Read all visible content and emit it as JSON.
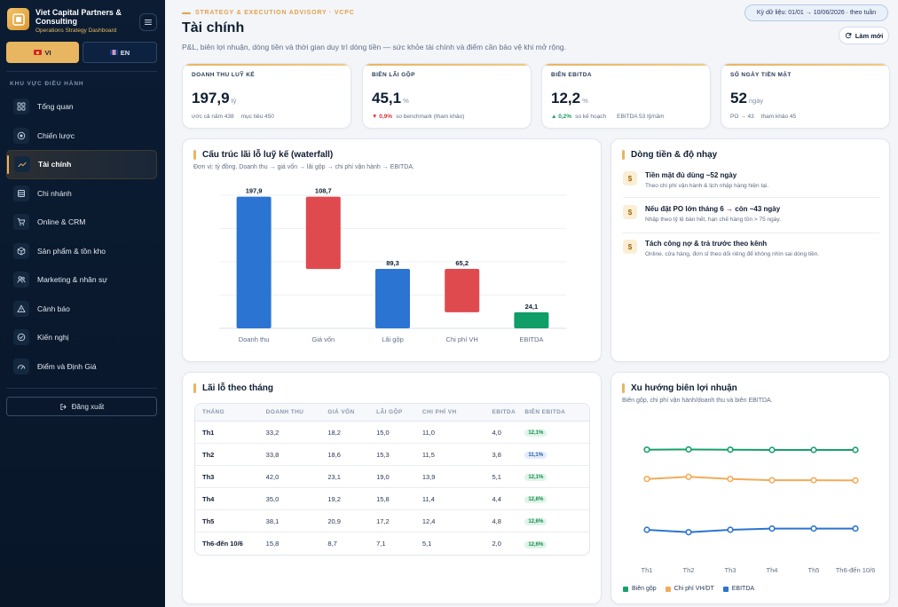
{
  "brand": {
    "name": "Viet Capital Partners & Consulting",
    "subtitle": "Operations Strategy Dashboard"
  },
  "languages": [
    {
      "code": "VI",
      "active": true
    },
    {
      "code": "EN",
      "active": false
    }
  ],
  "sidebar": {
    "section_label": "KHU VỰC ĐIỀU HÀNH",
    "items": [
      {
        "label": "Tổng quan",
        "icon": "grid-icon"
      },
      {
        "label": "Chiến lược",
        "icon": "target-icon"
      },
      {
        "label": "Tài chính",
        "icon": "trend-up-icon",
        "active": true
      },
      {
        "label": "Chi nhánh",
        "icon": "store-icon"
      },
      {
        "label": "Online & CRM",
        "icon": "cart-icon"
      },
      {
        "label": "Sản phẩm & tồn kho",
        "icon": "box-icon"
      },
      {
        "label": "Marketing & nhân sự",
        "icon": "users-icon"
      },
      {
        "label": "Cảnh báo",
        "icon": "warning-icon"
      },
      {
        "label": "Kiến nghị",
        "icon": "check-circle-icon"
      },
      {
        "label": "Điểm và Định Giá",
        "icon": "gauge-icon"
      }
    ],
    "logout_label": "Đăng xuất"
  },
  "header": {
    "eyebrow": "STRATEGY & EXECUTION ADVISORY · VCPC",
    "title": "Tài chính",
    "subtitle": "P&L, biên lợi nhuận, dòng tiền và thời gian duy trì dòng tiền — sức khỏe tài chính và điểm cần bảo vệ khi mở rộng.",
    "period": "Kỳ dữ liệu: 01/01 → 10/06/2026 · theo tuần",
    "refresh_label": "Làm mới"
  },
  "kpis": [
    {
      "label": "DOANH THU LUỸ KẾ",
      "value": "197,9",
      "unit": "tỷ",
      "delta": "",
      "foot1": "ước cả năm 438",
      "foot2": "mục tiêu 450"
    },
    {
      "label": "BIÊN LÃI GỘP",
      "value": "45,1",
      "unit": "%",
      "delta": "▼ 0,9%",
      "foot1": "so benchmark (tham khảo)",
      "foot2": ""
    },
    {
      "label": "BIÊN EBITDA",
      "value": "12,2",
      "unit": "%",
      "delta": "▲ 0,2%",
      "foot1": "so kế hoạch",
      "foot2": "EBITDA 53 tỷ/năm"
    },
    {
      "label": "SỐ NGÀY TIỀN MẶT",
      "value": "52",
      "unit": "ngày",
      "delta": "",
      "foot1": "PO → 43",
      "foot2": "tham khảo 45"
    }
  ],
  "waterfall": {
    "title": "Cấu trúc lãi lỗ luỹ kế (waterfall)",
    "subtitle": "Đơn vị: tỷ đồng. Doanh thu → giá vốn → lãi gộp → chi phí vận hành → EBITDA."
  },
  "cashflow": {
    "title": "Dòng tiền & độ nhạy",
    "items": [
      {
        "icon": "$",
        "title": "Tiền mặt đủ dùng ~52 ngày",
        "desc": "Theo chi phí vận hành & lịch nhập hàng hiện tại."
      },
      {
        "icon": "$",
        "title": "Nếu đặt PO lớn tháng 6 → còn ~43 ngày",
        "desc": "Nhập theo tỷ lệ bán hết, hạn chế hàng tồn > 75 ngày."
      },
      {
        "icon": "$",
        "title": "Tách công nợ & trả trước theo kênh",
        "desc": "Online, cửa hàng, đơn sỉ theo dõi riêng để không nhìn sai dòng tiền."
      }
    ]
  },
  "pl_table": {
    "title": "Lãi lỗ theo tháng",
    "columns": [
      "THÁNG",
      "DOANH THU",
      "GIÁ VỐN",
      "LÃI GỘP",
      "CHI PHÍ VH",
      "EBITDA",
      "BIÊN EBITDA"
    ],
    "rows": [
      [
        "Th1",
        "33,2",
        "18,2",
        "15,0",
        "11,0",
        "4,0",
        "12,1%"
      ],
      [
        "Th2",
        "33,8",
        "18,6",
        "15,3",
        "11,5",
        "3,8",
        "11,1%"
      ],
      [
        "Th3",
        "42,0",
        "23,1",
        "19,0",
        "13,9",
        "5,1",
        "12,1%"
      ],
      [
        "Th4",
        "35,0",
        "19,2",
        "15,8",
        "11,4",
        "4,4",
        "12,6%"
      ],
      [
        "Th5",
        "38,1",
        "20,9",
        "17,2",
        "12,4",
        "4,8",
        "12,6%"
      ],
      [
        "Th6-đến 10/6",
        "15,8",
        "8,7",
        "7,1",
        "5,1",
        "2,0",
        "12,6%"
      ]
    ]
  },
  "trend": {
    "title": "Xu hướng biên lợi nhuận",
    "subtitle": "Biên gộp, chi phí vận hành/doanh thu và biên EBITDA."
  },
  "chart_data": [
    {
      "type": "bar",
      "subtype": "waterfall",
      "title": "Cấu trúc lãi lỗ luỹ kế (waterfall)",
      "categories": [
        "Doanh thu",
        "Giá vốn",
        "Lãi gộp",
        "Chi phí VH",
        "EBITDA"
      ],
      "values": [
        197.9,
        108.7,
        89.3,
        65.2,
        24.1
      ],
      "value_labels": [
        "197,9",
        "108,7",
        "89,3",
        "65,2",
        "24,1"
      ],
      "kinds": [
        "total",
        "decrease",
        "total",
        "decrease",
        "total"
      ],
      "ylim": [
        0,
        200
      ],
      "grid": true,
      "colors": {
        "total": "#2c74d1",
        "decrease": "#df4a4f",
        "result": "#0f9d68"
      }
    },
    {
      "type": "line",
      "title": "Xu hướng biên lợi nhuận",
      "categories": [
        "Th1",
        "Th2",
        "Th3",
        "Th4",
        "Th5",
        "Th6-đến 10/6"
      ],
      "series": [
        {
          "name": "Biên gộp",
          "values": [
            45.2,
            45.3,
            45.2,
            45.1,
            45.1,
            45.1
          ],
          "color": "#17a06b"
        },
        {
          "name": "Chi phí VH/DT",
          "values": [
            33.1,
            34.0,
            33.1,
            32.6,
            32.6,
            32.5
          ],
          "color": "#f2ab59"
        },
        {
          "name": "EBITDA",
          "values": [
            12.1,
            11.1,
            12.1,
            12.6,
            12.6,
            12.6
          ],
          "color": "#2c74d1"
        }
      ],
      "ylim": [
        0,
        55
      ],
      "grid": false,
      "legend": "bottom-left"
    }
  ]
}
